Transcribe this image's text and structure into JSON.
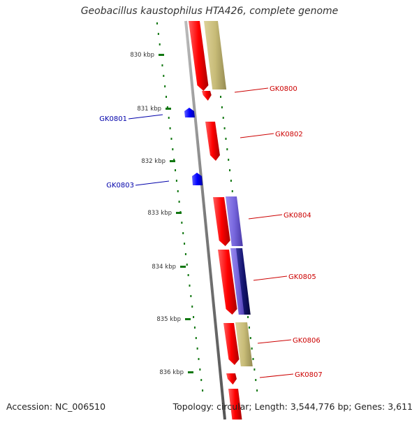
{
  "title": "Geobacillus kaustophilus HTA426, complete genome",
  "footer": {
    "accession": "Accession: NC_006510",
    "summary": "Topology: circular; Length: 3,544,776 bp; Genes: 3,611"
  },
  "colors": {
    "forward_cds": "#ff0000",
    "reverse_cds": "#0000ff",
    "feature_olive": "#c8bc78",
    "feature_purple": "#7766dd",
    "feature_navy": "#141470",
    "tick": "#117711",
    "backbone": "#888888",
    "label_red": "#cc0000",
    "label_blue": "#0000aa"
  },
  "ruler": {
    "unit": "kbp",
    "ticks": [
      "830 kbp",
      "831 kbp",
      "832 kbp",
      "833 kbp",
      "834 kbp",
      "835 kbp",
      "836 kbp"
    ]
  },
  "genes": [
    {
      "name": "GK0800",
      "strand": "forward"
    },
    {
      "name": "GK0801",
      "strand": "reverse"
    },
    {
      "name": "GK0802",
      "strand": "forward"
    },
    {
      "name": "GK0803",
      "strand": "reverse"
    },
    {
      "name": "GK0804",
      "strand": "forward"
    },
    {
      "name": "GK0805",
      "strand": "forward"
    },
    {
      "name": "GK0806",
      "strand": "forward"
    },
    {
      "name": "GK0807",
      "strand": "forward"
    }
  ]
}
